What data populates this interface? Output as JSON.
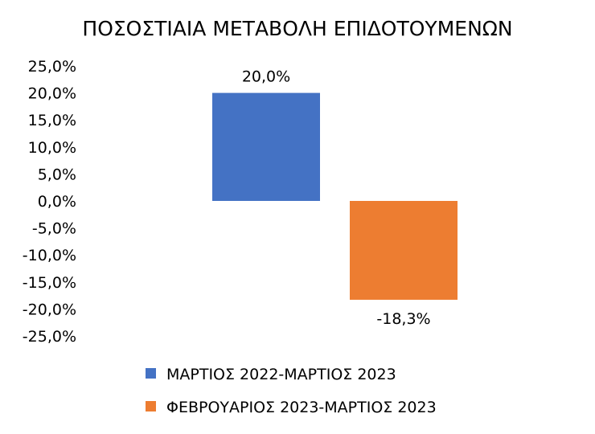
{
  "chart_data": {
    "type": "bar",
    "title": "ΠΟΣΟΣΤΙΑΙΑ ΜΕΤΑΒΟΛΗ ΕΠΙΔΟΤΟΥΜΕΝΩΝ",
    "xlabel": "",
    "ylabel": "",
    "ylim": [
      -25,
      25
    ],
    "yticks": [
      25,
      20,
      15,
      10,
      5,
      0,
      -5,
      -10,
      -15,
      -20,
      -25
    ],
    "ytick_labels": [
      "25,0%",
      "20,0%",
      "15,0%",
      "10,0%",
      "5,0%",
      "0,0%",
      "-5,0%",
      "-10,0%",
      "-15,0%",
      "-20,0%",
      "-25,0%"
    ],
    "grid": false,
    "legend_position": "bottom",
    "series": [
      {
        "name": "ΜΑΡΤΙΟΣ 2022-ΜΑΡΤΙΟΣ 2023",
        "value": 20.0,
        "label": "20,0%",
        "color": "#4472C4"
      },
      {
        "name": "ΦΕΒΡΟΥΑΡΙΟΣ 2023-ΜΑΡΤΙΟΣ 2023",
        "value": -18.3,
        "label": "-18,3%",
        "color": "#ED7D31"
      }
    ]
  }
}
